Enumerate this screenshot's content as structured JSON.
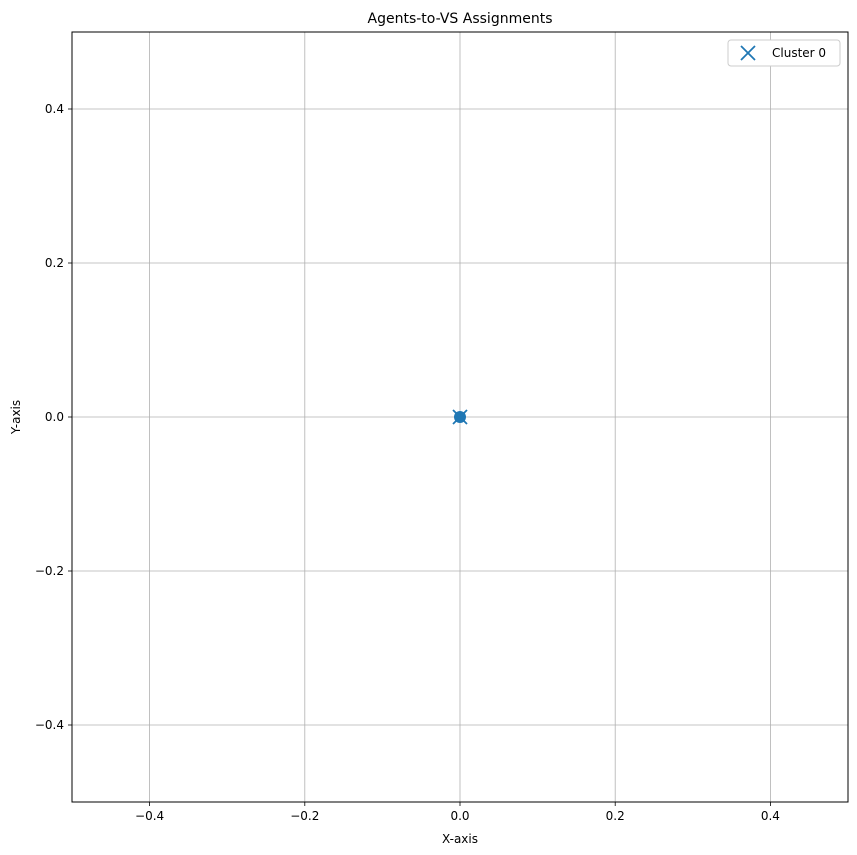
{
  "chart_data": {
    "type": "scatter",
    "title": "Agents-to-VS Assignments",
    "xlabel": "X-axis",
    "ylabel": "Y-axis",
    "xlim": [
      -0.5,
      0.5
    ],
    "ylim": [
      -0.5,
      0.5
    ],
    "xticks": [
      -0.4,
      -0.2,
      0.0,
      0.2,
      0.4
    ],
    "yticks": [
      -0.4,
      -0.2,
      0.0,
      0.2,
      0.4
    ],
    "xtick_labels": [
      "−0.4",
      "−0.2",
      "0.0",
      "0.2",
      "0.4"
    ],
    "ytick_labels": [
      "−0.4",
      "−0.2",
      "0.0",
      "0.2",
      "0.4"
    ],
    "grid": true,
    "legend_position": "top-right",
    "series": [
      {
        "name": "Cluster 0",
        "marker": "x",
        "color": "#1f77b4",
        "points": [
          {
            "x": 0.0,
            "y": 0.0
          }
        ]
      },
      {
        "marker": "o",
        "color": "#1f77b4",
        "points": [
          {
            "x": 0.0,
            "y": 0.0
          }
        ]
      }
    ]
  }
}
